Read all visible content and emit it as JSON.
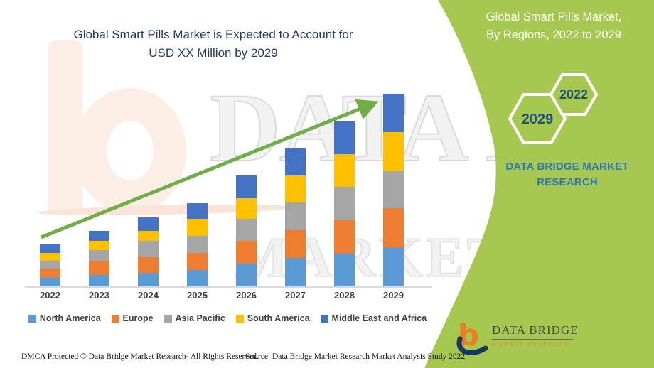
{
  "left_title": {
    "line1": "Global Smart Pills Market is Expected to Account for",
    "line2": "USD XX Million by 2029"
  },
  "right_panel": {
    "title_line1": "Global Smart Pills Market,",
    "title_line2": "By Regions, 2022 to 2029",
    "hexagons": [
      {
        "label": "2029"
      },
      {
        "label": "2022"
      }
    ],
    "brand_line1": "DATA BRIDGE MARKET",
    "brand_line2": "RESEARCH"
  },
  "chart_data": {
    "type": "bar",
    "stacked": true,
    "title": "Global Smart Pills Market is Expected to Account for USD XX Million by 2029",
    "xlabel": "",
    "ylabel": "",
    "y_axis_labeled": false,
    "ylim": [
      0,
      283
    ],
    "legend_position": "bottom",
    "trend_arrow": true,
    "categories": [
      "2022",
      "2023",
      "2024",
      "2025",
      "2026",
      "2027",
      "2028",
      "2029"
    ],
    "series": [
      {
        "name": "North America",
        "color": "#5B9BD5",
        "values": [
          12,
          16,
          19,
          23,
          32,
          40,
          46,
          55
        ]
      },
      {
        "name": "Europe",
        "color": "#ED7D31",
        "values": [
          13,
          20,
          22,
          24,
          32,
          39,
          47,
          55
        ]
      },
      {
        "name": "Asia Pacific",
        "color": "#A5A5A5",
        "values": [
          11,
          15,
          23,
          24,
          31,
          39,
          47,
          53
        ]
      },
      {
        "name": "South America",
        "color": "#FFC000",
        "values": [
          11,
          13,
          14,
          24,
          29,
          38,
          46,
          54
        ]
      },
      {
        "name": "Middle East and Africa",
        "color": "#4472C4",
        "values": [
          12,
          14,
          19,
          22,
          32,
          38,
          46,
          54
        ]
      }
    ],
    "totals": [
      59,
      78,
      97,
      117,
      156,
      194,
      232,
      271
    ]
  },
  "colors": {
    "green_panel": "#A6C850",
    "arrow_green": "#70AD47",
    "title_navy": "#203864",
    "brand_blue": "#2E78B5",
    "hex_number_blue": "#1F5382"
  },
  "watermark": {
    "line1": "DATA BRIDGE",
    "line2": "MARKET RESEARCH"
  },
  "footer": {
    "left": "DMCA Protected © Data Bridge Market Research- All Rights Reserved.",
    "source": "Source: Data Bridge Market Research Market Analysis Study 2022"
  },
  "logo": {
    "title": "DATA BRIDGE",
    "subtitle": "MARKET RESEARCH"
  }
}
